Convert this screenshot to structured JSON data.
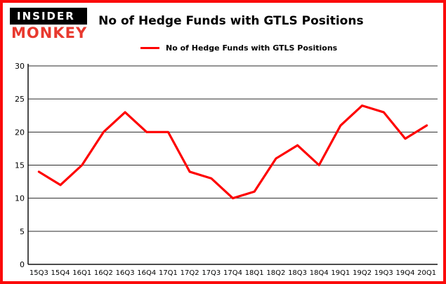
{
  "logo": {
    "line1": "INSIDER",
    "line2": "MONKEY"
  },
  "header": {
    "title": "No of Hedge Funds with GTLS Positions"
  },
  "legend": {
    "label": "No of Hedge Funds with GTLS Positions"
  },
  "colors": {
    "accent": "#fe0000",
    "border": "#fb0b0b",
    "grid": "#2a2a2a",
    "axis": "#111111",
    "text": "#000000"
  },
  "chart_data": {
    "type": "line",
    "title": "No of Hedge Funds with GTLS Positions",
    "legend": "No of Hedge Funds with GTLS Positions",
    "categories": [
      "15Q3",
      "15Q4",
      "16Q1",
      "16Q2",
      "16Q3",
      "16Q4",
      "17Q1",
      "17Q2",
      "17Q3",
      "17Q4",
      "18Q1",
      "18Q2",
      "18Q3",
      "18Q4",
      "19Q1",
      "19Q2",
      "19Q3",
      "19Q4",
      "20Q1"
    ],
    "values": [
      14,
      12,
      15,
      20,
      23,
      20,
      20,
      14,
      13,
      10,
      11,
      16,
      18,
      15,
      21,
      24,
      23,
      19,
      21
    ],
    "xlabel": "",
    "ylabel": "",
    "ylim": [
      0,
      30
    ],
    "yticks": [
      0,
      5,
      10,
      15,
      20,
      25,
      30
    ],
    "grid": true,
    "line_color": "#fe0000",
    "legend_position": "top-left"
  }
}
